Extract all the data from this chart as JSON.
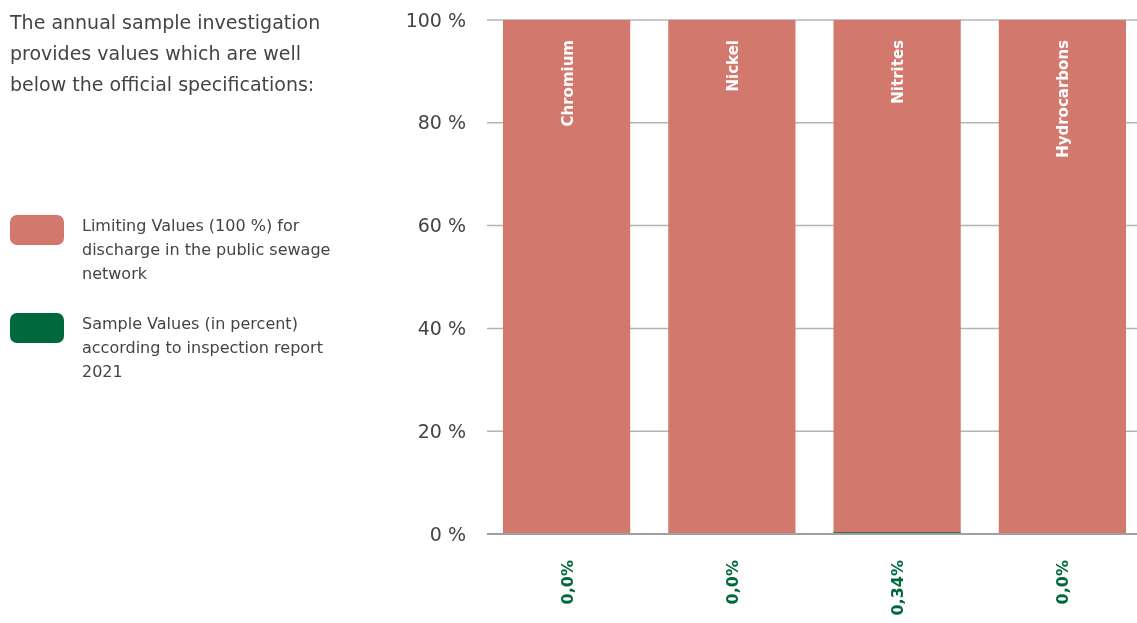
{
  "chart_data": {
    "type": "bar",
    "title": "The annual sample investigation provides values which are well below the official specifications:",
    "categories": [
      "Chromium",
      "Nickel",
      "Nitrites",
      "Hydrocarbons"
    ],
    "series": [
      {
        "name": "Limiting Values (100 %) for discharge in the public sewage network",
        "color": "#d2786d",
        "values": [
          100,
          100,
          100,
          100
        ]
      },
      {
        "name": "Sample Values (in percent) according to inspection report 2021",
        "color": "#00693c",
        "values": [
          0,
          0,
          0.34,
          0
        ],
        "value_labels": [
          "0,0%",
          "0,0%",
          "0,34%",
          "0,0%"
        ]
      }
    ],
    "ylim": [
      0,
      100
    ],
    "yticks": [
      {
        "value": 0,
        "label": "0 %"
      },
      {
        "value": 20,
        "label": "20 %"
      },
      {
        "value": 40,
        "label": "40 %"
      },
      {
        "value": 60,
        "label": "60 %"
      },
      {
        "value": 80,
        "label": "80 %"
      },
      {
        "value": 100,
        "label": "100 %"
      }
    ],
    "grid": "y",
    "legend": "left"
  }
}
